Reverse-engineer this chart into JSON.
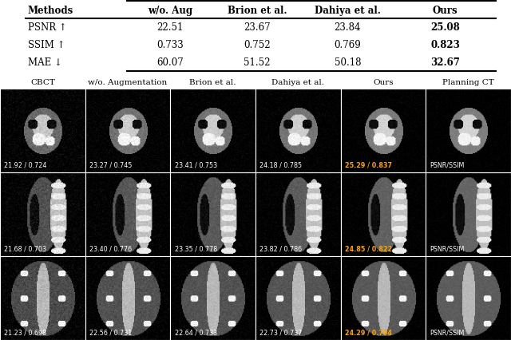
{
  "table_headers": [
    "Methods",
    "w/o. Aug",
    "Brion et al.",
    "Dahiya et al.",
    "Ours"
  ],
  "table_rows": [
    [
      "PSNR ↑",
      "22.51",
      "23.67",
      "23.84",
      "25.08"
    ],
    [
      "SSIM ↑",
      "0.733",
      "0.752",
      "0.769",
      "0.823"
    ],
    [
      "MAE ↓",
      "60.07",
      "51.52",
      "50.18",
      "32.67"
    ]
  ],
  "bold_col": 4,
  "col_labels": [
    "CBCT",
    "w/o. Augmentation",
    "Brion et al.",
    "Dahiya et al.",
    "Ours",
    "Planning CT"
  ],
  "annotations": [
    [
      "21.92 / 0.724",
      "23.27 / 0.745",
      "23.41 / 0.753",
      "24.18 / 0.785",
      "25.29 / 0.837",
      "PSNR/SSIM"
    ],
    [
      "21.68 / 0.703",
      "23.40 / 0.776",
      "23.35 / 0.778",
      "23.82 / 0.786",
      "24.85 / 0.822",
      "PSNR/SSIM"
    ],
    [
      "21.23 / 0.698",
      "22.56 / 0.731",
      "22.64 / 0.733",
      "22.73 / 0.737",
      "24.29 / 0.794",
      "PSNR/SSIM"
    ]
  ],
  "highlight_col": 4,
  "highlight_color": "#FFA500",
  "normal_color": "#FFFFFF",
  "bg_color": "#000000"
}
